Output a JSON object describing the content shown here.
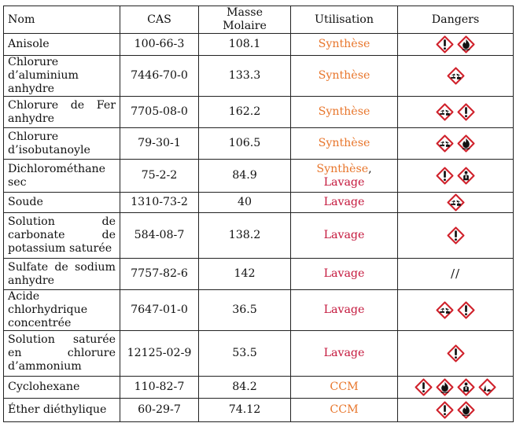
{
  "headers": [
    "Nom",
    "CAS",
    "Masse Molaire",
    "Utilisation",
    "Dangers"
  ],
  "rows": [
    {
      "name": "Anisole",
      "cas": "100-66-3",
      "mass": "108.1",
      "use": [
        {
          "text": "Synthèse",
          "kind": "syn"
        }
      ],
      "dangers": [
        "exclamation-icon",
        "flame-icon"
      ]
    },
    {
      "name": "Chlorure d’aluminium anhydre",
      "cas": "7446-70-0",
      "mass": "133.3",
      "use": [
        {
          "text": "Synthèse",
          "kind": "syn"
        }
      ],
      "dangers": [
        "corrosion-icon"
      ]
    },
    {
      "name": "Chlorure de Fer anhydre",
      "cas": "7705-08-0",
      "mass": "162.2",
      "use": [
        {
          "text": "Synthèse",
          "kind": "syn"
        }
      ],
      "dangers": [
        "corrosion-icon",
        "exclamation-icon"
      ]
    },
    {
      "name": "Chlorure d’isobutanoyle",
      "cas": "79-30-1",
      "mass": "106.5",
      "use": [
        {
          "text": "Synthèse",
          "kind": "syn"
        }
      ],
      "dangers": [
        "corrosion-icon",
        "flame-icon"
      ]
    },
    {
      "name": "Dichlorométhane sec",
      "cas": "75-2-2",
      "mass": "84.9",
      "use": [
        {
          "text": "Synthèse",
          "kind": "syn"
        },
        {
          "text": ", ",
          "kind": "comma"
        },
        {
          "text": "Lavage",
          "kind": "lav"
        }
      ],
      "dangers": [
        "exclamation-icon",
        "health-hazard-icon"
      ]
    },
    {
      "name": "Soude",
      "cas": "1310-73-2",
      "mass": "40",
      "use": [
        {
          "text": "Lavage",
          "kind": "lav"
        }
      ],
      "dangers": [
        "corrosion-icon"
      ]
    },
    {
      "name": "Solution de carbonate de potassium saturée",
      "cas": "584-08-7",
      "mass": "138.2",
      "use": [
        {
          "text": "Lavage",
          "kind": "lav"
        }
      ],
      "dangers": [
        "exclamation-icon"
      ]
    },
    {
      "name": "Sulfate de sodium anhydre",
      "cas": "7757-82-6",
      "mass": "142",
      "use": [
        {
          "text": "Lavage",
          "kind": "lav"
        }
      ],
      "dangers": [],
      "no_danger_text": "//"
    },
    {
      "name": "Acide chlorhydrique concentrée",
      "cas": "7647-01-0",
      "mass": "36.5",
      "use": [
        {
          "text": "Lavage",
          "kind": "lav"
        }
      ],
      "dangers": [
        "corrosion-icon",
        "exclamation-icon"
      ]
    },
    {
      "name": "Solution saturée en chlorure d’ammonium",
      "cas": "12125-02-9",
      "mass": "53.5",
      "use": [
        {
          "text": "Lavage",
          "kind": "lav"
        }
      ],
      "dangers": [
        "exclamation-icon"
      ]
    },
    {
      "name": "Cyclohexane",
      "cas": "110-82-7",
      "mass": "84.2",
      "use": [
        {
          "text": "CCM",
          "kind": "ccm"
        }
      ],
      "dangers": [
        "exclamation-icon",
        "flame-icon",
        "health-hazard-icon",
        "environment-icon"
      ]
    },
    {
      "name": "Éther diéthylique",
      "cas": "60-29-7",
      "mass": "74.12",
      "use": [
        {
          "text": "CCM",
          "kind": "ccm"
        }
      ],
      "dangers": [
        "exclamation-icon",
        "flame-icon"
      ]
    }
  ]
}
